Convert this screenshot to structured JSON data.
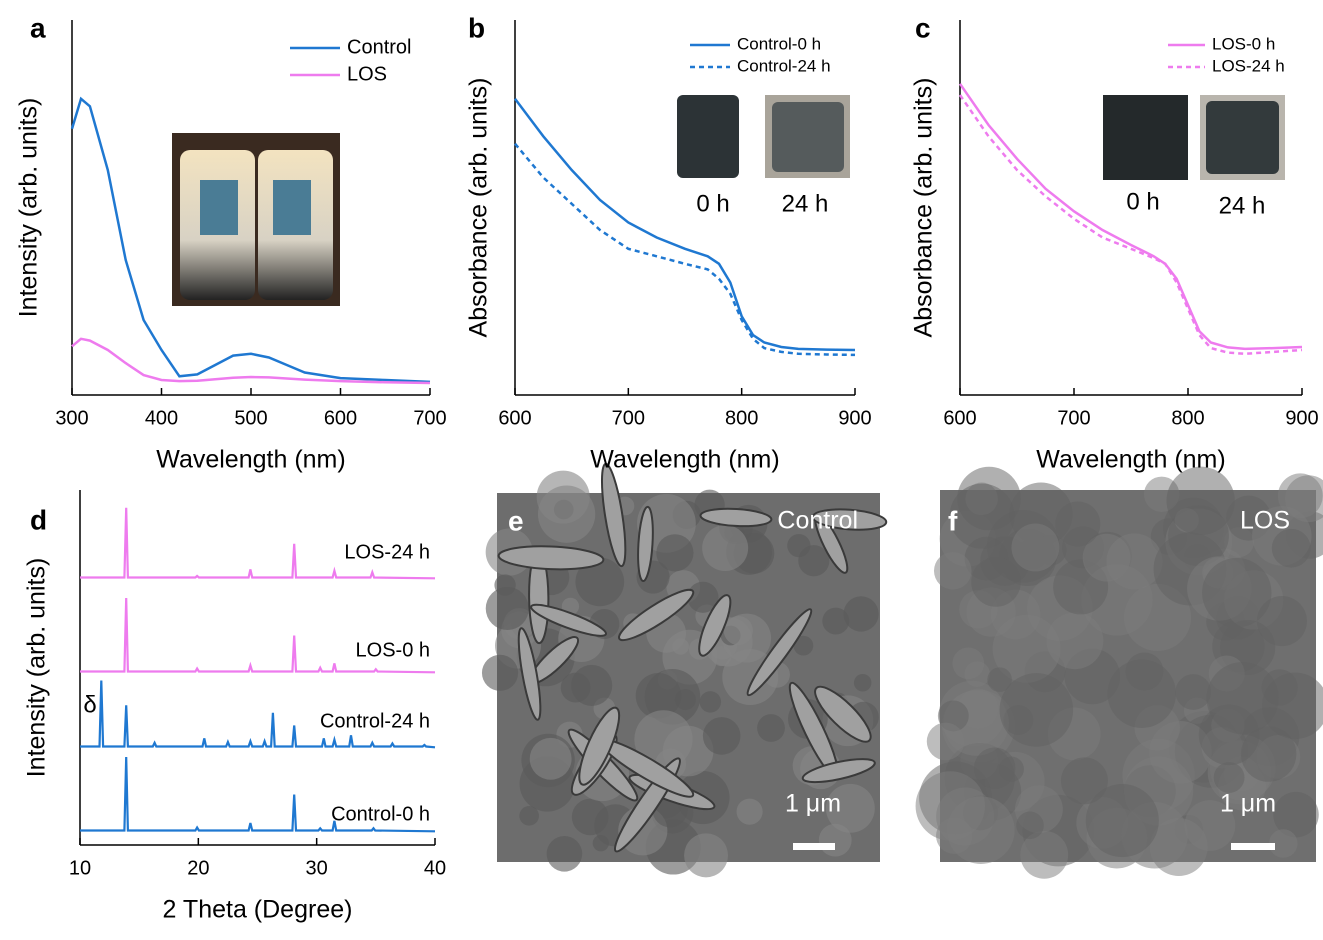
{
  "chart_data": [
    {
      "type": "line",
      "letter": "a",
      "xlabel": "Wavelength (nm)",
      "ylabel": "Intensity (arb. units)",
      "xlim": [
        300,
        700
      ],
      "xticks": [
        300,
        400,
        500,
        600,
        700
      ],
      "ylim": [
        0,
        1
      ],
      "legend": "upper right",
      "x": [
        300,
        310,
        320,
        340,
        360,
        380,
        400,
        420,
        440,
        460,
        480,
        500,
        520,
        540,
        560,
        600,
        650,
        700
      ],
      "series": [
        {
          "name": "Control",
          "color": "#1f78d1",
          "style": "solid",
          "values": [
            0.71,
            0.79,
            0.77,
            0.6,
            0.36,
            0.2,
            0.12,
            0.05,
            0.055,
            0.08,
            0.105,
            0.11,
            0.1,
            0.08,
            0.06,
            0.045,
            0.04,
            0.035
          ]
        },
        {
          "name": "LOS",
          "color": "#ee7bee",
          "style": "solid",
          "values": [
            0.13,
            0.15,
            0.145,
            0.12,
            0.085,
            0.053,
            0.04,
            0.037,
            0.038,
            0.042,
            0.046,
            0.048,
            0.047,
            0.044,
            0.041,
            0.037,
            0.034,
            0.032
          ]
        }
      ]
    },
    {
      "type": "line",
      "letter": "b",
      "xlabel": "Wavelength (nm)",
      "ylabel": "Absorbance (arb. units)",
      "xlim": [
        600,
        900
      ],
      "xticks": [
        600,
        700,
        800,
        900
      ],
      "ylim": [
        0,
        1
      ],
      "legend": "upper right",
      "annotations": [
        "0 h",
        "24 h"
      ],
      "x": [
        600,
        625,
        650,
        675,
        700,
        725,
        750,
        770,
        780,
        790,
        800,
        810,
        820,
        835,
        850,
        875,
        900
      ],
      "series": [
        {
          "name": "Control-0 h",
          "color": "#1f78d1",
          "style": "solid",
          "values": [
            0.79,
            0.69,
            0.6,
            0.52,
            0.46,
            0.42,
            0.39,
            0.37,
            0.35,
            0.3,
            0.21,
            0.16,
            0.14,
            0.128,
            0.123,
            0.121,
            0.12
          ]
        },
        {
          "name": "Control-24 h",
          "color": "#1f78d1",
          "style": "dashed",
          "values": [
            0.67,
            0.58,
            0.51,
            0.44,
            0.39,
            0.37,
            0.35,
            0.335,
            0.31,
            0.27,
            0.2,
            0.15,
            0.125,
            0.115,
            0.11,
            0.108,
            0.107
          ]
        }
      ]
    },
    {
      "type": "line",
      "letter": "c",
      "xlabel": "Wavelength (nm)",
      "ylabel": "Absorbance (arb. units)",
      "xlim": [
        600,
        900
      ],
      "xticks": [
        600,
        700,
        800,
        900
      ],
      "ylim": [
        0,
        1
      ],
      "legend": "upper right",
      "annotations": [
        "0 h",
        "24 h"
      ],
      "x": [
        600,
        625,
        650,
        675,
        700,
        725,
        750,
        770,
        780,
        790,
        800,
        810,
        820,
        835,
        850,
        875,
        900
      ],
      "series": [
        {
          "name": "LOS-0 h",
          "color": "#ee7bee",
          "style": "solid",
          "values": [
            0.83,
            0.72,
            0.63,
            0.55,
            0.49,
            0.44,
            0.4,
            0.37,
            0.35,
            0.31,
            0.24,
            0.17,
            0.14,
            0.127,
            0.123,
            0.125,
            0.128
          ]
        },
        {
          "name": "LOS-24 h",
          "color": "#ee7bee",
          "style": "dashed",
          "values": [
            0.8,
            0.69,
            0.6,
            0.53,
            0.47,
            0.42,
            0.39,
            0.365,
            0.35,
            0.3,
            0.23,
            0.16,
            0.125,
            0.113,
            0.11,
            0.115,
            0.12
          ]
        }
      ]
    },
    {
      "type": "xrd",
      "letter": "d",
      "xlabel": "2 Theta (Degree)",
      "ylabel": "Intensity (arb. units)",
      "xlim": [
        10,
        40
      ],
      "xticks": [
        10,
        20,
        30,
        40
      ],
      "annotations": [
        "δ"
      ],
      "series": [
        {
          "name": "Control-0 h",
          "color": "#1f78d1",
          "x": [
            10,
            13.75,
            13.9,
            14.05,
            19.75,
            19.9,
            20.05,
            24.25,
            24.4,
            24.55,
            27.95,
            28.1,
            28.25,
            30.15,
            30.3,
            30.45,
            31.35,
            31.5,
            31.65,
            34.65,
            34.8,
            34.95,
            40
          ],
          "values": [
            0.02,
            0.02,
            1.0,
            0.02,
            0.02,
            0.06,
            0.02,
            0.02,
            0.12,
            0.02,
            0.02,
            0.5,
            0.02,
            0.02,
            0.05,
            0.02,
            0.02,
            0.15,
            0.02,
            0.02,
            0.05,
            0.02,
            0.01
          ]
        },
        {
          "name": "Control-24 h",
          "color": "#1f78d1",
          "x": [
            10,
            11.65,
            11.8,
            11.95,
            13.75,
            13.9,
            14.05,
            16.15,
            16.3,
            16.45,
            20.35,
            20.5,
            20.65,
            22.35,
            22.5,
            22.65,
            24.25,
            24.4,
            24.55,
            25.45,
            25.6,
            25.75,
            26.15,
            26.3,
            26.45,
            27.95,
            28.1,
            28.25,
            30.45,
            30.6,
            30.75,
            31.35,
            31.5,
            31.65,
            32.75,
            32.9,
            33.05,
            34.55,
            34.7,
            34.85,
            36.25,
            36.4,
            36.55,
            38.95,
            39.1,
            39.25,
            40
          ],
          "values": [
            0.02,
            0.02,
            0.9,
            0.02,
            0.02,
            0.57,
            0.02,
            0.02,
            0.07,
            0.02,
            0.02,
            0.13,
            0.02,
            0.02,
            0.08,
            0.02,
            0.02,
            0.09,
            0.02,
            0.02,
            0.09,
            0.02,
            0.02,
            0.47,
            0.02,
            0.02,
            0.3,
            0.02,
            0.02,
            0.13,
            0.02,
            0.02,
            0.11,
            0.02,
            0.02,
            0.17,
            0.02,
            0.02,
            0.07,
            0.02,
            0.02,
            0.06,
            0.02,
            0.02,
            0.04,
            0.02,
            0.01
          ]
        },
        {
          "name": "LOS-0 h",
          "color": "#ee7bee",
          "x": [
            10,
            13.75,
            13.9,
            14.05,
            19.75,
            19.9,
            20.05,
            24.25,
            24.4,
            24.55,
            27.95,
            28.1,
            28.25,
            30.15,
            30.3,
            30.45,
            31.35,
            31.5,
            31.65,
            34.85,
            35,
            35.15,
            40
          ],
          "values": [
            0.02,
            0.02,
            1.0,
            0.02,
            0.02,
            0.06,
            0.02,
            0.02,
            0.1,
            0.02,
            0.02,
            0.5,
            0.02,
            0.02,
            0.07,
            0.02,
            0.02,
            0.13,
            0.02,
            0.02,
            0.05,
            0.02,
            0.01
          ]
        },
        {
          "name": "LOS-24 h",
          "color": "#ee7bee",
          "x": [
            10,
            13.75,
            13.9,
            14.05,
            19.75,
            19.9,
            20.05,
            24.25,
            24.4,
            24.55,
            27.95,
            28.1,
            28.25,
            31.35,
            31.5,
            31.65,
            34.55,
            34.7,
            34.85,
            40
          ],
          "values": [
            0.02,
            0.02,
            0.95,
            0.02,
            0.02,
            0.04,
            0.02,
            0.02,
            0.13,
            0.02,
            0.02,
            0.47,
            0.02,
            0.02,
            0.11,
            0.02,
            0.02,
            0.09,
            0.02,
            0.01
          ]
        }
      ]
    }
  ],
  "images": [
    {
      "letter": "e",
      "label": "Control",
      "scale": "1 μm"
    },
    {
      "letter": "f",
      "label": "LOS",
      "scale": "1 μm"
    }
  ]
}
